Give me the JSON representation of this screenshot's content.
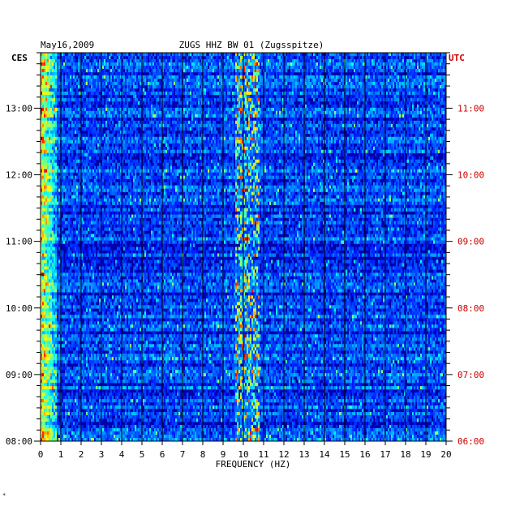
{
  "header": {
    "date": "May16,2009",
    "station": "ZUGS HHZ BW 01 (Zugsspitze)"
  },
  "corner_mark": "*",
  "colors": {
    "background_field": "#0000a8",
    "grid": "#000000",
    "utc_text": "#cc0000",
    "local_text": "#000000"
  },
  "chart_data": {
    "type": "heatmap",
    "title": "ZUGS HHZ BW 01 (Zugsspitze)",
    "date": "May16,2009",
    "xlabel": "FREQUENCY (HZ)",
    "x_ticks": [
      "0",
      "1",
      "2",
      "3",
      "4",
      "5",
      "6",
      "7",
      "8",
      "9",
      "10",
      "11",
      "12",
      "13",
      "14",
      "15",
      "16",
      "17",
      "18",
      "19",
      "20"
    ],
    "xlim": [
      0,
      20
    ],
    "left_axis_label": "CES",
    "left_ticks": [
      "13:00",
      "12:00",
      "11:00",
      "10:00",
      "09:00",
      "08:00"
    ],
    "right_axis_label": "UTC",
    "right_ticks": [
      "11:00",
      "10:00",
      "09:00",
      "08:00",
      "07:00",
      "06:00"
    ],
    "time_range_ces": [
      "08:00",
      "13:50"
    ],
    "colormap": "jet",
    "features": [
      {
        "description_band_hz": [
          0,
          0.8
        ],
        "level": "high"
      },
      {
        "description_band_hz": [
          9.6,
          10.8
        ],
        "level": "high"
      }
    ]
  }
}
